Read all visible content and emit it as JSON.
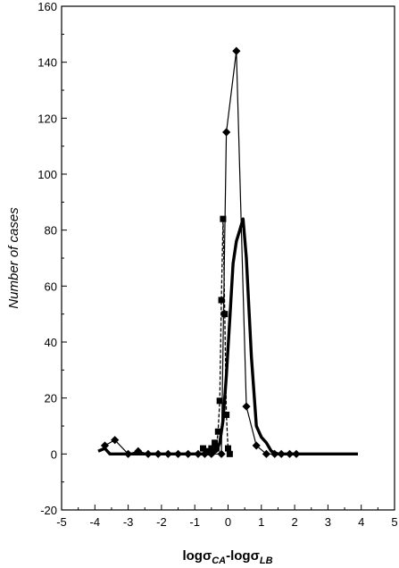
{
  "chart_data": {
    "type": "line",
    "title": "",
    "xlabel": "logσCA-logσLB",
    "xlabel_parts": {
      "prefix1": "log",
      "sigma1": "σ",
      "sub1": "CA",
      "dash": "-log",
      "sigma2": "σ",
      "sub2": "LB"
    },
    "ylabel": "Number of cases",
    "xlim": [
      -5,
      5
    ],
    "ylim": [
      -20,
      160
    ],
    "xticks": [
      -5,
      -4,
      -3,
      -2,
      -1,
      0,
      1,
      2,
      3,
      4,
      5
    ],
    "yticks": [
      -20,
      0,
      20,
      40,
      60,
      80,
      100,
      120,
      140,
      160
    ],
    "tick_labels_x": [
      "-5",
      "-4",
      "-3",
      "-2",
      "-1",
      "0",
      "1",
      "2",
      "3",
      "4",
      "5"
    ],
    "tick_labels_y": [
      "-20",
      "0",
      "20",
      "40",
      "60",
      "80",
      "100",
      "120",
      "140",
      "160"
    ],
    "grid": false,
    "legend": "none",
    "series": [
      {
        "style": "diamond-thin-line",
        "color": "#000000",
        "x": [
          -3.7,
          -3.4,
          -3.0,
          -2.7,
          -2.4,
          -2.1,
          -1.8,
          -1.5,
          -1.2,
          -0.9,
          -0.7,
          -0.5,
          -0.2,
          -0.05,
          0.25,
          0.55,
          0.85,
          1.15,
          1.4,
          1.6,
          1.85,
          2.05
        ],
        "y": [
          3,
          5,
          0,
          1,
          0,
          0,
          0,
          0,
          0,
          0,
          0,
          0,
          0,
          115,
          144,
          17,
          3,
          0,
          0,
          0,
          0,
          0
        ]
      },
      {
        "style": "square-dashed-line",
        "color": "#000000",
        "x": [
          -0.75,
          -0.6,
          -0.5,
          -0.4,
          -0.35,
          -0.3,
          -0.25,
          -0.2,
          -0.15,
          -0.1,
          -0.05,
          0.0,
          0.05
        ],
        "y": [
          2,
          1,
          2,
          4,
          2,
          8,
          19,
          55,
          84,
          50,
          14,
          2,
          0
        ]
      },
      {
        "style": "thick-solid-line",
        "color": "#000000",
        "x": [
          -3.9,
          -3.7,
          -3.55,
          -3.4,
          -3.2,
          -2.8,
          -2.0,
          -1.0,
          -0.5,
          -0.35,
          -0.25,
          -0.15,
          -0.05,
          0.05,
          0.15,
          0.25,
          0.35,
          0.45,
          0.55,
          0.7,
          0.85,
          1.0,
          1.15,
          1.3,
          1.5,
          2.0,
          3.0,
          3.9
        ],
        "y": [
          1,
          2,
          0,
          0,
          0,
          0,
          0,
          0,
          0,
          1,
          4,
          12,
          28,
          48,
          68,
          76,
          80,
          84,
          70,
          35,
          10,
          6,
          4,
          1,
          0,
          0,
          0,
          0
        ]
      }
    ]
  }
}
